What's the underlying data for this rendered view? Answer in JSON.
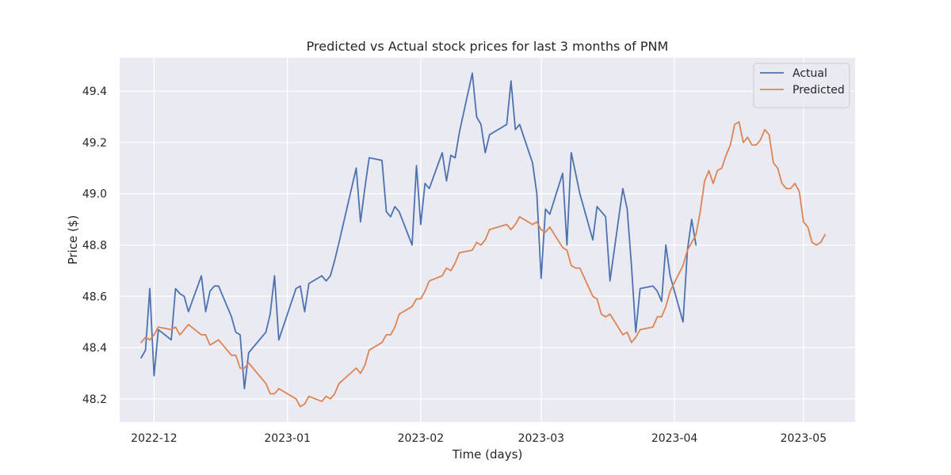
{
  "chart_data": {
    "type": "line",
    "title": "Predicted vs Actual stock prices for last 3 months of PNM",
    "xlabel": "Time (days)",
    "ylabel": "Price ($)",
    "xlim": [
      "2022-11-23",
      "2023-05-13"
    ],
    "ylim": [
      48.11,
      49.53
    ],
    "x_ticks": [
      "2022-12-01",
      "2023-01-01",
      "2023-02-01",
      "2023-03-01",
      "2023-04-01",
      "2023-05-01"
    ],
    "x_tick_labels": [
      "2022-12",
      "2023-01",
      "2023-02",
      "2023-03",
      "2023-04",
      "2023-05"
    ],
    "y_ticks": [
      48.2,
      48.4,
      48.6,
      48.8,
      49.0,
      49.2,
      49.4
    ],
    "y_tick_labels": [
      "48.2",
      "48.4",
      "48.6",
      "48.8",
      "49.0",
      "49.2",
      "49.4"
    ],
    "grid": true,
    "legend_position": "top-right",
    "series": [
      {
        "name": "Actual",
        "color": "#4c72b0",
        "points": [
          [
            "2022-11-28",
            48.36
          ],
          [
            "2022-11-29",
            48.39
          ],
          [
            "2022-11-30",
            48.63
          ],
          [
            "2022-12-01",
            48.29
          ],
          [
            "2022-12-02",
            48.47
          ],
          [
            "2022-12-05",
            48.43
          ],
          [
            "2022-12-06",
            48.63
          ],
          [
            "2022-12-07",
            48.61
          ],
          [
            "2022-12-08",
            48.6
          ],
          [
            "2022-12-09",
            48.54
          ],
          [
            "2022-12-12",
            48.68
          ],
          [
            "2022-12-13",
            48.54
          ],
          [
            "2022-12-14",
            48.62
          ],
          [
            "2022-12-15",
            48.64
          ],
          [
            "2022-12-16",
            48.64
          ],
          [
            "2022-12-19",
            48.52
          ],
          [
            "2022-12-20",
            48.46
          ],
          [
            "2022-12-21",
            48.45
          ],
          [
            "2022-12-22",
            48.24
          ],
          [
            "2022-12-23",
            48.38
          ],
          [
            "2022-12-27",
            48.46
          ],
          [
            "2022-12-28",
            48.53
          ],
          [
            "2022-12-29",
            48.68
          ],
          [
            "2022-12-30",
            48.43
          ],
          [
            "2023-01-03",
            48.63
          ],
          [
            "2023-01-04",
            48.64
          ],
          [
            "2023-01-05",
            48.54
          ],
          [
            "2023-01-06",
            48.65
          ],
          [
            "2023-01-09",
            48.68
          ],
          [
            "2023-01-10",
            48.66
          ],
          [
            "2023-01-11",
            48.68
          ],
          [
            "2023-01-12",
            48.74
          ],
          [
            "2023-01-13",
            48.81
          ],
          [
            "2023-01-17",
            49.1
          ],
          [
            "2023-01-18",
            48.89
          ],
          [
            "2023-01-19",
            49.02
          ],
          [
            "2023-01-20",
            49.14
          ],
          [
            "2023-01-23",
            49.13
          ],
          [
            "2023-01-24",
            48.93
          ],
          [
            "2023-01-25",
            48.91
          ],
          [
            "2023-01-26",
            48.95
          ],
          [
            "2023-01-27",
            48.93
          ],
          [
            "2023-01-30",
            48.8
          ],
          [
            "2023-01-31",
            49.11
          ],
          [
            "2023-02-01",
            48.88
          ],
          [
            "2023-02-02",
            49.04
          ],
          [
            "2023-02-03",
            49.02
          ],
          [
            "2023-02-06",
            49.16
          ],
          [
            "2023-02-07",
            49.05
          ],
          [
            "2023-02-08",
            49.15
          ],
          [
            "2023-02-09",
            49.14
          ],
          [
            "2023-02-10",
            49.24
          ],
          [
            "2023-02-13",
            49.47
          ],
          [
            "2023-02-14",
            49.3
          ],
          [
            "2023-02-15",
            49.27
          ],
          [
            "2023-02-16",
            49.16
          ],
          [
            "2023-02-17",
            49.23
          ],
          [
            "2023-02-21",
            49.27
          ],
          [
            "2023-02-22",
            49.44
          ],
          [
            "2023-02-23",
            49.25
          ],
          [
            "2023-02-24",
            49.27
          ],
          [
            "2023-02-27",
            49.12
          ],
          [
            "2023-02-28",
            49.0
          ],
          [
            "2023-03-01",
            48.67
          ],
          [
            "2023-03-02",
            48.94
          ],
          [
            "2023-03-03",
            48.92
          ],
          [
            "2023-03-06",
            49.08
          ],
          [
            "2023-03-07",
            48.8
          ],
          [
            "2023-03-08",
            49.16
          ],
          [
            "2023-03-09",
            49.08
          ],
          [
            "2023-03-10",
            49.0
          ],
          [
            "2023-03-13",
            48.82
          ],
          [
            "2023-03-14",
            48.95
          ],
          [
            "2023-03-15",
            48.93
          ],
          [
            "2023-03-16",
            48.91
          ],
          [
            "2023-03-17",
            48.66
          ],
          [
            "2023-03-20",
            49.02
          ],
          [
            "2023-03-21",
            48.94
          ],
          [
            "2023-03-22",
            48.72
          ],
          [
            "2023-03-23",
            48.46
          ],
          [
            "2023-03-24",
            48.63
          ],
          [
            "2023-03-27",
            48.64
          ],
          [
            "2023-03-28",
            48.62
          ],
          [
            "2023-03-29",
            48.58
          ],
          [
            "2023-03-30",
            48.8
          ],
          [
            "2023-03-31",
            48.68
          ],
          [
            "2023-04-03",
            48.5
          ],
          [
            "2023-04-04",
            48.78
          ],
          [
            "2023-04-05",
            48.9
          ],
          [
            "2023-04-06",
            48.8
          ]
        ]
      },
      {
        "name": "Predicted",
        "color": "#dd8452",
        "points": [
          [
            "2022-11-28",
            48.42
          ],
          [
            "2022-11-29",
            48.44
          ],
          [
            "2022-11-30",
            48.43
          ],
          [
            "2022-12-01",
            48.45
          ],
          [
            "2022-12-02",
            48.48
          ],
          [
            "2022-12-05",
            48.47
          ],
          [
            "2022-12-06",
            48.48
          ],
          [
            "2022-12-07",
            48.45
          ],
          [
            "2022-12-08",
            48.47
          ],
          [
            "2022-12-09",
            48.49
          ],
          [
            "2022-12-12",
            48.45
          ],
          [
            "2022-12-13",
            48.45
          ],
          [
            "2022-12-14",
            48.41
          ],
          [
            "2022-12-15",
            48.42
          ],
          [
            "2022-12-16",
            48.43
          ],
          [
            "2022-12-19",
            48.37
          ],
          [
            "2022-12-20",
            48.37
          ],
          [
            "2022-12-21",
            48.32
          ],
          [
            "2022-12-22",
            48.32
          ],
          [
            "2022-12-23",
            48.34
          ],
          [
            "2022-12-27",
            48.26
          ],
          [
            "2022-12-28",
            48.22
          ],
          [
            "2022-12-29",
            48.22
          ],
          [
            "2022-12-30",
            48.24
          ],
          [
            "2023-01-03",
            48.2
          ],
          [
            "2023-01-04",
            48.17
          ],
          [
            "2023-01-05",
            48.18
          ],
          [
            "2023-01-06",
            48.21
          ],
          [
            "2023-01-09",
            48.19
          ],
          [
            "2023-01-10",
            48.21
          ],
          [
            "2023-01-11",
            48.2
          ],
          [
            "2023-01-12",
            48.22
          ],
          [
            "2023-01-13",
            48.26
          ],
          [
            "2023-01-17",
            48.32
          ],
          [
            "2023-01-18",
            48.3
          ],
          [
            "2023-01-19",
            48.33
          ],
          [
            "2023-01-20",
            48.39
          ],
          [
            "2023-01-23",
            48.42
          ],
          [
            "2023-01-24",
            48.45
          ],
          [
            "2023-01-25",
            48.45
          ],
          [
            "2023-01-26",
            48.48
          ],
          [
            "2023-01-27",
            48.53
          ],
          [
            "2023-01-30",
            48.56
          ],
          [
            "2023-01-31",
            48.59
          ],
          [
            "2023-02-01",
            48.59
          ],
          [
            "2023-02-02",
            48.62
          ],
          [
            "2023-02-03",
            48.66
          ],
          [
            "2023-02-06",
            48.68
          ],
          [
            "2023-02-07",
            48.71
          ],
          [
            "2023-02-08",
            48.7
          ],
          [
            "2023-02-09",
            48.73
          ],
          [
            "2023-02-10",
            48.77
          ],
          [
            "2023-02-13",
            48.78
          ],
          [
            "2023-02-14",
            48.81
          ],
          [
            "2023-02-15",
            48.8
          ],
          [
            "2023-02-16",
            48.82
          ],
          [
            "2023-02-17",
            48.86
          ],
          [
            "2023-02-21",
            48.88
          ],
          [
            "2023-02-22",
            48.86
          ],
          [
            "2023-02-23",
            48.88
          ],
          [
            "2023-02-24",
            48.91
          ],
          [
            "2023-02-27",
            48.88
          ],
          [
            "2023-02-28",
            48.89
          ],
          [
            "2023-03-01",
            48.86
          ],
          [
            "2023-03-02",
            48.85
          ],
          [
            "2023-03-03",
            48.87
          ],
          [
            "2023-03-06",
            48.79
          ],
          [
            "2023-03-07",
            48.78
          ],
          [
            "2023-03-08",
            48.72
          ],
          [
            "2023-03-09",
            48.71
          ],
          [
            "2023-03-10",
            48.71
          ],
          [
            "2023-03-13",
            48.6
          ],
          [
            "2023-03-14",
            48.59
          ],
          [
            "2023-03-15",
            48.53
          ],
          [
            "2023-03-16",
            48.52
          ],
          [
            "2023-03-17",
            48.53
          ],
          [
            "2023-03-20",
            48.45
          ],
          [
            "2023-03-21",
            48.46
          ],
          [
            "2023-03-22",
            48.42
          ],
          [
            "2023-03-23",
            48.44
          ],
          [
            "2023-03-24",
            48.47
          ],
          [
            "2023-03-27",
            48.48
          ],
          [
            "2023-03-28",
            48.52
          ],
          [
            "2023-03-29",
            48.52
          ],
          [
            "2023-03-30",
            48.56
          ],
          [
            "2023-03-31",
            48.62
          ],
          [
            "2023-04-03",
            48.72
          ],
          [
            "2023-04-04",
            48.78
          ],
          [
            "2023-04-05",
            48.81
          ],
          [
            "2023-04-06",
            48.84
          ],
          [
            "2023-04-07",
            48.93
          ],
          [
            "2023-04-08",
            49.05
          ],
          [
            "2023-04-09",
            49.09
          ],
          [
            "2023-04-10",
            49.04
          ],
          [
            "2023-04-11",
            49.09
          ],
          [
            "2023-04-12",
            49.1
          ],
          [
            "2023-04-13",
            49.15
          ],
          [
            "2023-04-14",
            49.19
          ],
          [
            "2023-04-15",
            49.27
          ],
          [
            "2023-04-16",
            49.28
          ],
          [
            "2023-04-17",
            49.2
          ],
          [
            "2023-04-18",
            49.22
          ],
          [
            "2023-04-19",
            49.19
          ],
          [
            "2023-04-20",
            49.19
          ],
          [
            "2023-04-21",
            49.21
          ],
          [
            "2023-04-22",
            49.25
          ],
          [
            "2023-04-23",
            49.23
          ],
          [
            "2023-04-24",
            49.12
          ],
          [
            "2023-04-25",
            49.1
          ],
          [
            "2023-04-26",
            49.04
          ],
          [
            "2023-04-27",
            49.02
          ],
          [
            "2023-04-28",
            49.02
          ],
          [
            "2023-04-29",
            49.04
          ],
          [
            "2023-04-30",
            49.01
          ],
          [
            "2023-05-01",
            48.89
          ],
          [
            "2023-05-02",
            48.87
          ],
          [
            "2023-05-03",
            48.81
          ],
          [
            "2023-05-04",
            48.8
          ],
          [
            "2023-05-05",
            48.81
          ],
          [
            "2023-05-06",
            48.84
          ]
        ]
      }
    ]
  }
}
